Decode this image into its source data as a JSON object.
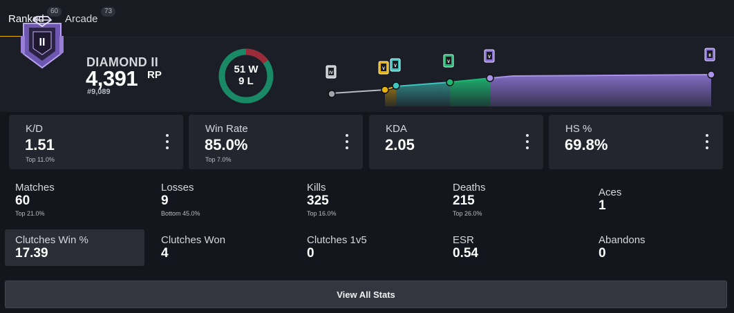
{
  "tabs": [
    {
      "label": "Ranked",
      "count": "60",
      "active": true
    },
    {
      "label": "Arcade",
      "count": "73",
      "active": false
    }
  ],
  "rank": {
    "name": "DIAMOND II",
    "emblem_numeral": "II",
    "rp": "4,391",
    "rp_unit": "RP",
    "position": "#9,089",
    "emblem_color": "#9a7fd6"
  },
  "record": {
    "wins_label": "51 W",
    "losses_label": "9 L",
    "wins": 51,
    "losses": 9,
    "win_color": "#1a8a66",
    "loss_color": "#9b2b38"
  },
  "chart_data": {
    "type": "area",
    "title": "",
    "segments": [
      {
        "rank_icon": "IV",
        "color": "#9ea3ab"
      },
      {
        "rank_icon": "V",
        "color": "#e7b10a"
      },
      {
        "rank_icon": "V",
        "color": "#3cc6c0"
      },
      {
        "rank_icon": "V",
        "color": "#1fb874"
      },
      {
        "rank_icon": "V",
        "color": "#8e74d6"
      },
      {
        "rank_icon": "II",
        "color": "#8e74d6"
      }
    ],
    "x": [
      0,
      1,
      2,
      3,
      4,
      5,
      6,
      7,
      8,
      9,
      10,
      11,
      12,
      13,
      14,
      15
    ],
    "y": [
      0.0,
      0.04,
      0.06,
      0.08,
      0.22,
      0.26,
      0.3,
      0.38,
      0.46,
      0.5,
      0.58,
      0.6,
      0.62,
      0.64,
      0.66,
      0.7
    ]
  },
  "cards": [
    {
      "title": "K/D",
      "value": "1.51",
      "sub": "Top 11.0%"
    },
    {
      "title": "Win Rate",
      "value": "85.0%",
      "sub": "Top 7.0%"
    },
    {
      "title": "KDA",
      "value": "2.05",
      "sub": ""
    },
    {
      "title": "HS %",
      "value": "69.8%",
      "sub": ""
    }
  ],
  "stats_row1": [
    {
      "title": "Matches",
      "value": "60",
      "sub": "Top 21.0%"
    },
    {
      "title": "Losses",
      "value": "9",
      "sub": "Bottom 45.0%"
    },
    {
      "title": "Kills",
      "value": "325",
      "sub": "Top 16.0%"
    },
    {
      "title": "Deaths",
      "value": "215",
      "sub": "Top 26.0%"
    },
    {
      "title": "Aces",
      "value": "1",
      "sub": ""
    }
  ],
  "stats_row2": [
    {
      "title": "Clutches Win %",
      "value": "17.39",
      "sub": ""
    },
    {
      "title": "Clutches Won",
      "value": "4",
      "sub": ""
    },
    {
      "title": "Clutches 1v5",
      "value": "0",
      "sub": ""
    },
    {
      "title": "ESR",
      "value": "0.54",
      "sub": ""
    },
    {
      "title": "Abandons",
      "value": "0",
      "sub": ""
    }
  ],
  "view_all_label": "View All Stats",
  "icons": {
    "kebab": "more-vertical-icon",
    "emblem": "rank-emblem-icon",
    "diamond": "diamond-icon"
  }
}
